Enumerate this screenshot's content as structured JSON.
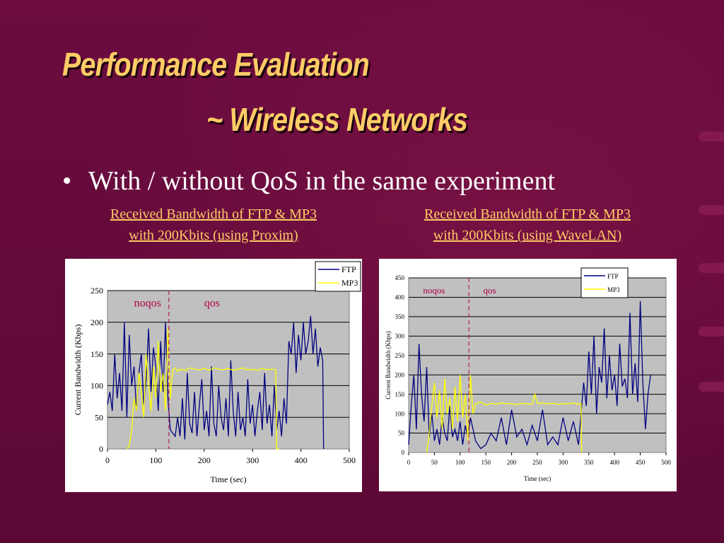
{
  "slide": {
    "title_line1": "Performance Evaluation",
    "title_line2": "~ Wireless Networks",
    "bullet_mark": "•",
    "bullet_text": "With / without QoS in the same experiment",
    "colors": {
      "background": "#640a3a",
      "title": "#ffcc66",
      "caption": "#ffcc66",
      "text": "#ffffff"
    }
  },
  "captions": {
    "left_line1": "Received Bandwidth of FTP & MP3",
    "left_line2": "with 200Kbits (using Proxim)",
    "right_line1": "Received Bandwidth of FTP & MP3",
    "right_line2": "with 200Kbits (using WaveLAN)"
  },
  "chart_data": [
    {
      "type": "line",
      "title": "",
      "xlabel": "Time (sec)",
      "ylabel": "Current Bandwidth (Kbps)",
      "xlim": [
        0,
        500
      ],
      "ylim": [
        0,
        250
      ],
      "xticks": [
        0,
        100,
        200,
        300,
        400,
        500
      ],
      "yticks": [
        0,
        50,
        100,
        150,
        200,
        250
      ],
      "grid": "horizontal",
      "legend": "top-right",
      "annotations": [
        {
          "text": "noqos",
          "x": 55,
          "y": 225
        },
        {
          "text": "qos",
          "x": 200,
          "y": 225
        }
      ],
      "divider_x": 127,
      "series": [
        {
          "name": "FTP",
          "color": "#000080",
          "x": [
            0,
            5,
            10,
            15,
            20,
            25,
            30,
            35,
            40,
            45,
            50,
            55,
            60,
            65,
            70,
            75,
            80,
            85,
            90,
            95,
            100,
            105,
            110,
            115,
            120,
            125,
            130,
            135,
            140,
            145,
            150,
            155,
            160,
            165,
            170,
            175,
            180,
            185,
            190,
            195,
            200,
            205,
            210,
            215,
            220,
            225,
            230,
            235,
            240,
            245,
            250,
            255,
            260,
            265,
            270,
            275,
            280,
            285,
            290,
            295,
            300,
            305,
            310,
            315,
            320,
            325,
            330,
            335,
            340,
            345,
            350,
            355,
            360,
            365,
            370,
            375,
            380,
            385,
            390,
            395,
            400,
            405,
            410,
            415,
            420,
            425,
            430,
            435,
            440,
            445,
            447
          ],
          "values": [
            70,
            90,
            60,
            150,
            80,
            120,
            60,
            200,
            50,
            180,
            100,
            130,
            60,
            120,
            150,
            70,
            110,
            190,
            90,
            160,
            130,
            60,
            170,
            90,
            200,
            80,
            30,
            25,
            20,
            50,
            20,
            80,
            15,
            120,
            40,
            25,
            90,
            20,
            70,
            110,
            30,
            60,
            20,
            130,
            40,
            20,
            100,
            50,
            30,
            80,
            20,
            140,
            60,
            20,
            90,
            30,
            50,
            20,
            110,
            40,
            70,
            20,
            60,
            90,
            30,
            120,
            40,
            70,
            20,
            100,
            30,
            60,
            20,
            80,
            40,
            170,
            150,
            200,
            120,
            180,
            140,
            200,
            150,
            170,
            210,
            150,
            190,
            130,
            160,
            140,
            0
          ],
          "data_labels": []
        },
        {
          "name": "MP3",
          "color": "#ffff00",
          "x": [
            40,
            45,
            50,
            55,
            60,
            65,
            70,
            75,
            80,
            85,
            90,
            95,
            100,
            105,
            110,
            115,
            120,
            125,
            130,
            135,
            140,
            145,
            150,
            160,
            170,
            180,
            190,
            200,
            210,
            220,
            230,
            240,
            250,
            260,
            270,
            280,
            290,
            300,
            310,
            320,
            330,
            340,
            348,
            350,
            355
          ],
          "values": [
            0,
            5,
            30,
            80,
            60,
            120,
            90,
            50,
            150,
            100,
            60,
            130,
            80,
            170,
            90,
            120,
            60,
            190,
            80,
            125,
            128,
            122,
            126,
            124,
            128,
            126,
            125,
            127,
            124,
            128,
            126,
            125,
            127,
            124,
            126,
            128,
            125,
            126,
            124,
            127,
            125,
            126,
            125,
            0,
            0
          ],
          "data_labels": []
        }
      ]
    },
    {
      "type": "line",
      "title": "",
      "xlabel": "Time (sec)",
      "ylabel": "Current Bandwidth (Kbps)",
      "xlim": [
        0,
        500
      ],
      "ylim": [
        0,
        450
      ],
      "xticks": [
        0,
        50,
        100,
        150,
        200,
        250,
        300,
        350,
        400,
        450,
        500
      ],
      "yticks": [
        0,
        50,
        100,
        150,
        200,
        250,
        300,
        350,
        400,
        450
      ],
      "grid": "horizontal",
      "legend": "top-right",
      "annotations": [
        {
          "text": "noqos",
          "x": 28,
          "y": 410
        },
        {
          "text": "qos",
          "x": 145,
          "y": 410
        }
      ],
      "divider_x": 117,
      "series": [
        {
          "name": "FTP",
          "color": "#000080",
          "x": [
            0,
            5,
            10,
            15,
            20,
            25,
            30,
            35,
            40,
            45,
            50,
            55,
            60,
            65,
            70,
            75,
            80,
            85,
            90,
            95,
            100,
            105,
            110,
            115,
            120,
            130,
            140,
            150,
            160,
            170,
            180,
            190,
            200,
            210,
            220,
            230,
            240,
            250,
            260,
            270,
            280,
            290,
            300,
            310,
            320,
            330,
            340,
            345,
            350,
            355,
            360,
            365,
            370,
            375,
            380,
            385,
            390,
            395,
            400,
            405,
            410,
            415,
            420,
            425,
            430,
            435,
            440,
            445,
            450,
            455,
            460,
            465,
            470
          ],
          "values": [
            20,
            120,
            200,
            60,
            280,
            150,
            80,
            220,
            40,
            100,
            30,
            60,
            20,
            90,
            50,
            30,
            120,
            40,
            60,
            30,
            80,
            20,
            70,
            40,
            90,
            30,
            10,
            20,
            50,
            30,
            90,
            20,
            110,
            40,
            60,
            20,
            70,
            30,
            110,
            20,
            40,
            20,
            90,
            30,
            80,
            20,
            180,
            120,
            260,
            150,
            300,
            100,
            220,
            180,
            320,
            140,
            250,
            160,
            200,
            120,
            280,
            170,
            190,
            140,
            360,
            150,
            230,
            130,
            390,
            180,
            60,
            150,
            200
          ]
        },
        {
          "name": "MP3",
          "color": "#ffff00",
          "x": [
            35,
            40,
            45,
            50,
            55,
            60,
            65,
            70,
            75,
            80,
            85,
            90,
            95,
            100,
            105,
            110,
            115,
            120,
            125,
            130,
            140,
            150,
            160,
            170,
            180,
            190,
            200,
            210,
            220,
            230,
            240,
            245,
            250,
            260,
            270,
            280,
            290,
            300,
            310,
            320,
            330,
            335,
            336
          ],
          "values": [
            0,
            50,
            120,
            180,
            90,
            160,
            60,
            190,
            100,
            140,
            60,
            170,
            80,
            200,
            90,
            150,
            30,
            200,
            100,
            125,
            130,
            122,
            127,
            124,
            128,
            125,
            126,
            123,
            127,
            125,
            124,
            150,
            126,
            128,
            125,
            127,
            124,
            126,
            125,
            128,
            124,
            126,
            0
          ]
        }
      ]
    }
  ]
}
